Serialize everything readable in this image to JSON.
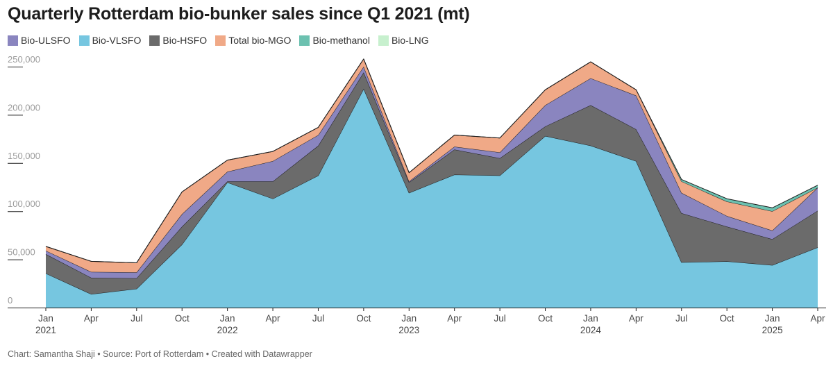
{
  "chart_data": {
    "type": "area",
    "stacked": true,
    "title": "Quarterly Rotterdam bio-bunker sales since Q1 2021 (mt)",
    "x": [
      "2021-01",
      "2021-04",
      "2021-07",
      "2021-10",
      "2022-01",
      "2022-04",
      "2022-07",
      "2022-10",
      "2023-01",
      "2023-04",
      "2023-07",
      "2023-10",
      "2024-01",
      "2024-04",
      "2024-07",
      "2024-10",
      "2025-01",
      "2025-04"
    ],
    "x_tick_labels": [
      {
        "month": "Jan",
        "year": "2021"
      },
      {
        "month": "Apr",
        "year": ""
      },
      {
        "month": "Jul",
        "year": ""
      },
      {
        "month": "Oct",
        "year": ""
      },
      {
        "month": "Jan",
        "year": "2022"
      },
      {
        "month": "Apr",
        "year": ""
      },
      {
        "month": "Jul",
        "year": ""
      },
      {
        "month": "Oct",
        "year": ""
      },
      {
        "month": "Jan",
        "year": "2023"
      },
      {
        "month": "Apr",
        "year": ""
      },
      {
        "month": "Jul",
        "year": ""
      },
      {
        "month": "Oct",
        "year": ""
      },
      {
        "month": "Jan",
        "year": "2024"
      },
      {
        "month": "Apr",
        "year": ""
      },
      {
        "month": "Jul",
        "year": ""
      },
      {
        "month": "Oct",
        "year": ""
      },
      {
        "month": "Jan",
        "year": "2025"
      },
      {
        "month": "Apr",
        "year": ""
      }
    ],
    "y_ticks": [
      0,
      50000,
      100000,
      150000,
      200000,
      250000
    ],
    "y_tick_labels": [
      "0",
      "50,000",
      "100,000",
      "150,000",
      "200,000",
      "250,000"
    ],
    "ylim": [
      0,
      260000
    ],
    "legend_position": "top-left",
    "series": [
      {
        "name": "Bio-VLSFO",
        "color": "#76c6e0",
        "values": [
          35500,
          14000,
          19500,
          65500,
          130000,
          113000,
          137000,
          227000,
          119000,
          138000,
          137000,
          178000,
          168000,
          152000,
          47000,
          48000,
          44000,
          62500
        ]
      },
      {
        "name": "Bio-HSFO",
        "color": "#6b6b6b",
        "values": [
          20000,
          17000,
          11000,
          18500,
          1000,
          18000,
          31000,
          17000,
          11000,
          26000,
          18000,
          10000,
          42000,
          33000,
          51000,
          36000,
          27000,
          38000
        ]
      },
      {
        "name": "Bio-ULSFO",
        "color": "#8a85bf",
        "values": [
          3500,
          6000,
          6000,
          13000,
          10000,
          21000,
          11000,
          6000,
          1000,
          3000,
          6000,
          22000,
          28000,
          35000,
          21000,
          11000,
          9000,
          24000
        ]
      },
      {
        "name": "Total bio-MGO",
        "color": "#f0a987",
        "values": [
          4500,
          11000,
          10000,
          23000,
          12000,
          10000,
          8000,
          8000,
          9000,
          12000,
          15000,
          16000,
          17000,
          6000,
          12000,
          15000,
          20000,
          0
        ]
      },
      {
        "name": "Bio-methanol",
        "color": "#6cc1b0",
        "values": [
          0,
          0,
          0,
          0,
          0,
          0,
          0,
          0,
          0,
          0,
          0,
          0,
          0,
          0,
          2000,
          3000,
          3500,
          2500
        ]
      },
      {
        "name": "Bio-LNG",
        "color": "#c7f0ce",
        "values": [
          0,
          0,
          0,
          0,
          0,
          0,
          0,
          0,
          0,
          0,
          0,
          0,
          0,
          0,
          0,
          0,
          0,
          0
        ]
      }
    ],
    "legend_order": [
      "Bio-ULSFO",
      "Bio-VLSFO",
      "Bio-HSFO",
      "Total bio-MGO",
      "Bio-methanol",
      "Bio-LNG"
    ]
  },
  "footer": "Chart: Samantha Shaji • Source: Port of Rotterdam • Created with Datawrapper"
}
